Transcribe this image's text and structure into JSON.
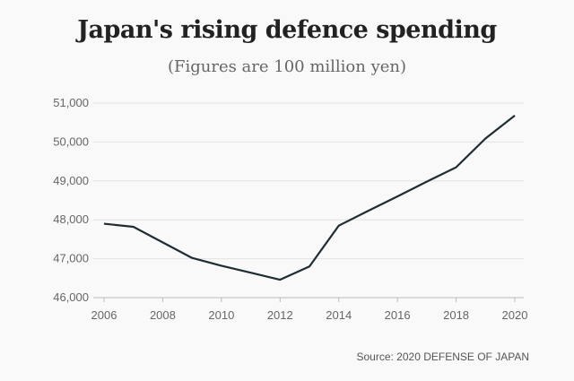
{
  "chart_data": {
    "type": "line",
    "title": "Japan's rising defence spending",
    "subtitle": "(Figures are 100 million yen)",
    "source": "Source: 2020 DEFENSE OF JAPAN",
    "x": [
      2006,
      2007,
      2008,
      2009,
      2010,
      2011,
      2012,
      2013,
      2014,
      2015,
      2016,
      2017,
      2018,
      2019,
      2020
    ],
    "values": [
      47900,
      47820,
      47420,
      47020,
      46820,
      46640,
      46460,
      46800,
      47850,
      48230,
      48600,
      48980,
      49350,
      50090,
      50680
    ],
    "xlim": [
      2006,
      2020
    ],
    "ylim": [
      46000,
      51000
    ],
    "xticks": [
      "2006",
      "2008",
      "2010",
      "2012",
      "2014",
      "2016",
      "2018",
      "2020"
    ],
    "yticks": [
      "46,000",
      "47,000",
      "48,000",
      "49,000",
      "50,000",
      "51,000"
    ],
    "grid": "horizontal",
    "line_color": "#1f2d33"
  }
}
